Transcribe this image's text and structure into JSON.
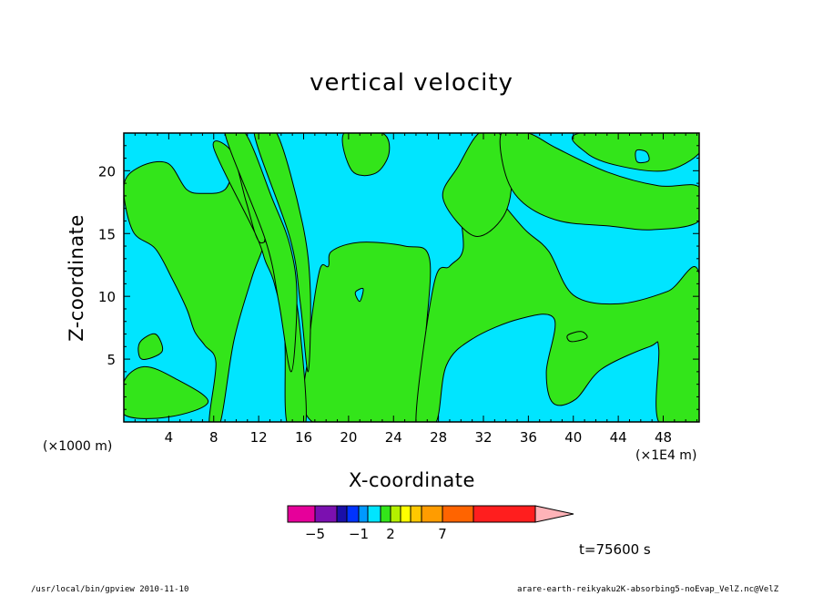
{
  "title": "vertical velocity",
  "xlabel": "X-coordinate",
  "ylabel": "Z-coordinate",
  "x_unit": "(×1E4 m)",
  "y_unit": "(×1000 m)",
  "time_label": "t=75600 s",
  "footer_left": "/usr/local/bin/gpview  2010-11-10",
  "footer_right": "arare-earth-reikyaku2K-absorbing5-noEvap_VelZ.nc@VelZ",
  "colors": {
    "positive": "#33e51a",
    "negative": "#00e5ff",
    "contour": "#000000"
  },
  "chart_data": {
    "type": "heatmap",
    "title": "vertical velocity",
    "xlabel": "X-coordinate",
    "ylabel": "Z-coordinate",
    "xlim": [
      0,
      51.2
    ],
    "ylim": [
      0,
      23
    ],
    "xticks": [
      4,
      8,
      12,
      16,
      20,
      24,
      28,
      32,
      36,
      40,
      44,
      48
    ],
    "yticks": [
      5,
      10,
      15,
      20
    ],
    "green_regions": [
      [
        [
          16.8,
          0
        ],
        [
          26.6,
          0
        ],
        [
          26.8,
          6
        ],
        [
          27.2,
          13
        ],
        [
          25.0,
          14
        ],
        [
          21.0,
          14.3
        ],
        [
          18.5,
          13.6
        ],
        [
          18.2,
          12.4
        ],
        [
          17.4,
          12
        ],
        [
          16.5,
          6
        ]
      ],
      [
        [
          0,
          18.8
        ],
        [
          0.8,
          15.2
        ],
        [
          2.8,
          13.8
        ],
        [
          4.3,
          11.4
        ],
        [
          5.6,
          9.0
        ],
        [
          6.3,
          7.2
        ],
        [
          7.2,
          6.1
        ],
        [
          8.2,
          4.7
        ],
        [
          7.6,
          0
        ],
        [
          8.6,
          0
        ],
        [
          9.8,
          6.5
        ],
        [
          11.4,
          11.5
        ],
        [
          12.6,
          14.8
        ],
        [
          12.2,
          18.5
        ],
        [
          10.3,
          20.5
        ],
        [
          9.0,
          18.5
        ],
        [
          7.2,
          18.2
        ],
        [
          5.6,
          18.5
        ],
        [
          3.9,
          20.6
        ],
        [
          1.4,
          20.3
        ]
      ],
      [
        [
          8.0,
          21.8
        ],
        [
          9.6,
          21.5
        ],
        [
          10.9,
          17.5
        ],
        [
          12.0,
          14.4
        ],
        [
          13.3,
          14.4
        ],
        [
          14.8,
          11.5
        ],
        [
          15.6,
          8.0
        ],
        [
          16.2,
          0
        ],
        [
          14.5,
          0
        ],
        [
          14.3,
          7.0
        ],
        [
          13.4,
          11.0
        ],
        [
          12.6,
          12.8
        ],
        [
          11.7,
          15.0
        ]
      ],
      [
        [
          9.0,
          23
        ],
        [
          10.8,
          23
        ],
        [
          13.2,
          17.8
        ],
        [
          14.8,
          14.0
        ],
        [
          15.4,
          10.0
        ],
        [
          14.9,
          4.0
        ],
        [
          13.8,
          9.5
        ],
        [
          12.6,
          14.5
        ]
      ],
      [
        [
          11.6,
          23
        ],
        [
          13.6,
          23
        ],
        [
          15.9,
          15.8
        ],
        [
          16.6,
          10.4
        ],
        [
          16.4,
          4.0
        ],
        [
          15.7,
          9.5
        ],
        [
          14.8,
          14.6
        ]
      ],
      [
        [
          26.0,
          0
        ],
        [
          27.8,
          0
        ],
        [
          28.7,
          4.5
        ],
        [
          31.0,
          6.6
        ],
        [
          35.2,
          8.2
        ],
        [
          38.3,
          8.2
        ],
        [
          37.6,
          4.0
        ],
        [
          38.2,
          1.5
        ],
        [
          40.2,
          1.8
        ],
        [
          42.5,
          4.2
        ],
        [
          46.8,
          6.0
        ],
        [
          47.6,
          5.8
        ],
        [
          47.6,
          0
        ],
        [
          51.2,
          0
        ],
        [
          51.2,
          11.8
        ],
        [
          48.4,
          10.4
        ],
        [
          44.0,
          9.4
        ],
        [
          40.0,
          10.1
        ],
        [
          37.8,
          13.6
        ],
        [
          35.6,
          15.4
        ],
        [
          32.8,
          18.4
        ],
        [
          30.8,
          20.6
        ],
        [
          29.9,
          17.8
        ],
        [
          30.2,
          13.8
        ],
        [
          29.0,
          12.4
        ],
        [
          27.6,
          11.0
        ]
      ],
      [
        [
          28.4,
          17.8
        ],
        [
          29.8,
          20.4
        ],
        [
          31.6,
          23
        ],
        [
          33.4,
          23
        ],
        [
          34.5,
          19.6
        ],
        [
          33.8,
          16.4
        ],
        [
          31.2,
          14.8
        ]
      ],
      [
        [
          33.6,
          23
        ],
        [
          36.0,
          23
        ],
        [
          38.5,
          21.8
        ],
        [
          43.0,
          19.9
        ],
        [
          47.6,
          18.8
        ],
        [
          51.2,
          18.7
        ],
        [
          51.2,
          16.0
        ],
        [
          47.0,
          15.3
        ],
        [
          43.2,
          15.6
        ],
        [
          38.8,
          16.0
        ],
        [
          35.6,
          17.4
        ],
        [
          34.0,
          19.6
        ]
      ],
      [
        [
          40.6,
          23
        ],
        [
          51.2,
          23
        ],
        [
          51.2,
          21.4
        ],
        [
          48.2,
          20.0
        ],
        [
          44.0,
          20.4
        ],
        [
          41.2,
          21.4
        ]
      ],
      [
        [
          0,
          0.6
        ],
        [
          4.0,
          0.4
        ],
        [
          7.5,
          1.6
        ],
        [
          4.5,
          3.5
        ],
        [
          1.8,
          4.4
        ],
        [
          0,
          3.2
        ]
      ],
      [
        [
          19.6,
          23
        ],
        [
          23.0,
          23
        ],
        [
          23.6,
          21.4
        ],
        [
          22.4,
          19.8
        ],
        [
          20.3,
          20.0
        ]
      ],
      [
        [
          1.6,
          5.0
        ],
        [
          3.4,
          5.6
        ],
        [
          2.8,
          7.0
        ],
        [
          1.4,
          6.3
        ]
      ],
      [
        [
          39.8,
          6.4
        ],
        [
          41.2,
          6.7
        ],
        [
          40.7,
          7.2
        ],
        [
          39.5,
          6.9
        ]
      ]
    ],
    "cyan_islands": [
      [
        [
          45.6,
          21.6
        ],
        [
          46.5,
          21.5
        ],
        [
          46.7,
          20.8
        ],
        [
          45.7,
          20.7
        ]
      ],
      [
        [
          20.6,
          10.3
        ],
        [
          21.3,
          10.6
        ],
        [
          21.0,
          9.6
        ]
      ]
    ]
  }
}
